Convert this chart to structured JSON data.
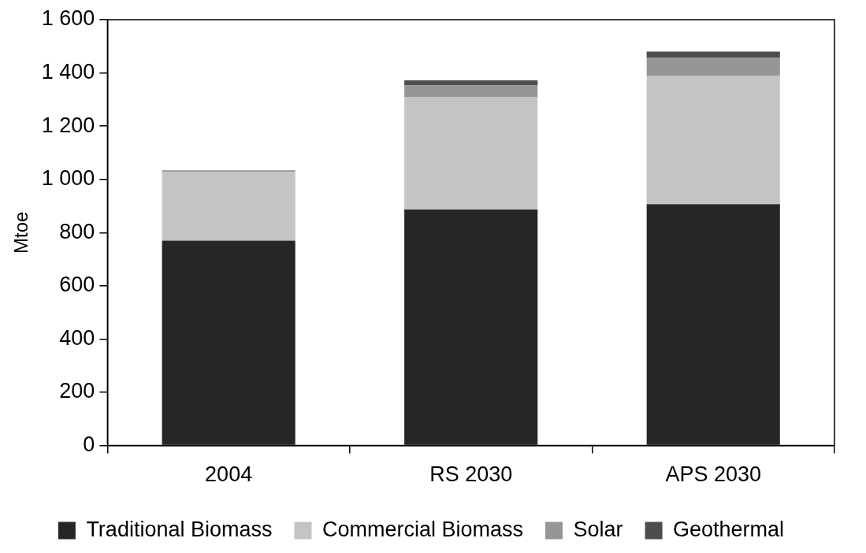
{
  "chart_data": {
    "type": "bar",
    "stacked": true,
    "ylabel": "Mtoe",
    "categories": [
      "2004",
      "RS 2030",
      "APS 2030"
    ],
    "series": [
      {
        "name": "Traditional Biomass",
        "color": "#262626",
        "values": [
          770,
          887,
          907
        ]
      },
      {
        "name": "Commercial Biomass",
        "color": "#c4c4c4",
        "values": [
          257,
          423,
          483
        ]
      },
      {
        "name": "Solar",
        "color": "#969696",
        "values": [
          3,
          43,
          68
        ]
      },
      {
        "name": "Geothermal",
        "color": "#4d4d4d",
        "values": [
          3,
          19,
          22
        ]
      }
    ],
    "ylim": [
      0,
      1600
    ],
    "yticks": [
      0,
      200,
      400,
      600,
      800,
      {
        "value": 1000,
        "label": "1 000"
      },
      {
        "value": 1200,
        "label": "1 200"
      },
      {
        "value": 1400,
        "label": "1 400"
      },
      {
        "value": 1600,
        "label": "1 600"
      }
    ],
    "grid": false,
    "legend": "bottom"
  }
}
